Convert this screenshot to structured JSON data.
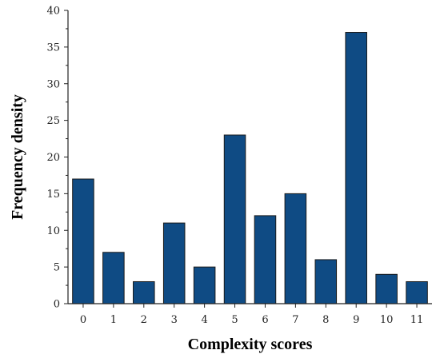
{
  "chart_data": {
    "type": "bar",
    "categories": [
      "0",
      "1",
      "2",
      "3",
      "4",
      "5",
      "6",
      "7",
      "8",
      "9",
      "10",
      "11"
    ],
    "values": [
      17,
      7,
      3,
      11,
      5,
      23,
      12,
      15,
      6,
      37,
      4,
      3
    ],
    "xlabel": "Complexity scores",
    "ylabel": "Frequency density",
    "ylim": [
      0,
      40
    ],
    "yticks": [
      0,
      5,
      10,
      15,
      20,
      25,
      30,
      35,
      40
    ],
    "grid": false,
    "bar_color": "#0f4b84"
  }
}
